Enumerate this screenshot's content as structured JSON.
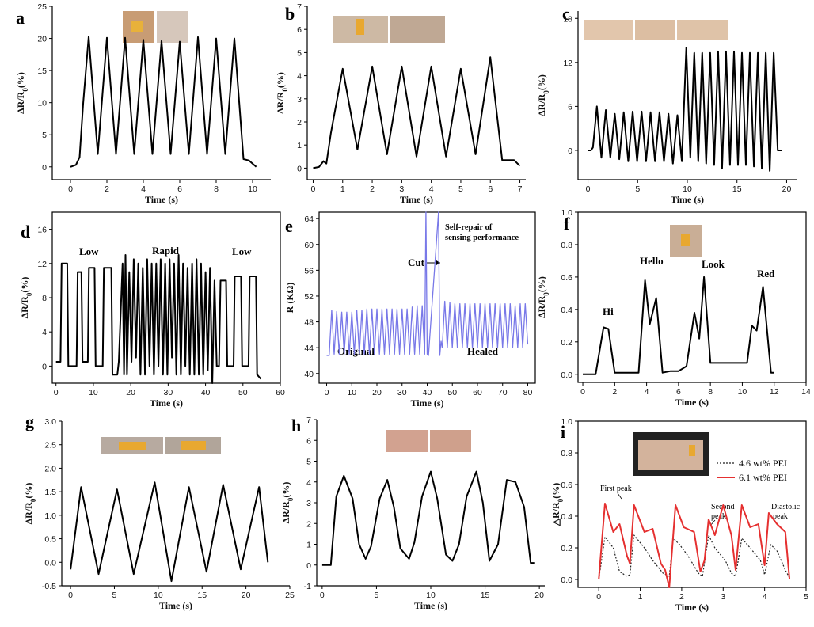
{
  "chart_data": [
    {
      "id": "a",
      "panel_label": "a",
      "type": "line",
      "xlabel": "Time (s)",
      "ylabel": "ΔR/R0(%)",
      "ylabel_main": "ΔR/R",
      "ylabel_sub": "0",
      "ylabel_tail": "(%)",
      "xlim": [
        -1,
        11
      ],
      "ylim": [
        -2,
        25
      ],
      "xticks": [
        0,
        2,
        4,
        6,
        8,
        10
      ],
      "yticks": [
        0,
        5,
        10,
        15,
        20,
        25
      ],
      "series": [
        {
          "name": "signal",
          "color": "#000000",
          "width": 2,
          "x": [
            0,
            0.3,
            0.5,
            0.7,
            1,
            1.5,
            2,
            2.5,
            3,
            3.5,
            4,
            4.5,
            5,
            5.5,
            6,
            6.5,
            7,
            7.5,
            8,
            8.5,
            9,
            9.5,
            9.8,
            10.2
          ],
          "y": [
            0,
            0.3,
            1.5,
            10,
            20.3,
            2,
            20.1,
            2,
            20.1,
            2,
            19.8,
            2,
            19.6,
            2,
            19.5,
            2,
            20.2,
            2,
            20,
            2,
            20,
            1.2,
            1,
            0
          ]
        }
      ]
    },
    {
      "id": "b",
      "panel_label": "b",
      "type": "line",
      "xlabel": "Time (s)",
      "ylabel": "ΔR/R0(%)",
      "ylabel_main": "ΔR/R",
      "ylabel_sub": "0",
      "ylabel_tail": "(%)",
      "xlim": [
        -0.2,
        7.2
      ],
      "ylim": [
        -0.5,
        7
      ],
      "xticks": [
        0,
        1,
        2,
        3,
        4,
        5,
        6,
        7
      ],
      "yticks": [
        0,
        1,
        2,
        3,
        4,
        5,
        6,
        7
      ],
      "series": [
        {
          "name": "signal",
          "color": "#000000",
          "width": 2,
          "x": [
            0,
            0.2,
            0.35,
            0.45,
            0.6,
            1,
            1.5,
            2,
            2.5,
            3,
            3.5,
            4,
            4.5,
            5,
            5.5,
            6,
            6.4,
            6.8,
            7
          ],
          "y": [
            0,
            0.05,
            0.3,
            0.2,
            1.5,
            4.3,
            0.8,
            4.4,
            0.6,
            4.4,
            0.5,
            4.4,
            0.5,
            4.3,
            0.6,
            4.8,
            0.35,
            0.35,
            0.1
          ]
        }
      ]
    },
    {
      "id": "c",
      "panel_label": "c",
      "type": "line",
      "xlabel": "Time (s)",
      "ylabel": "ΔR/R0(%)",
      "ylabel_main": "ΔR/R",
      "ylabel_sub": "0",
      "ylabel_tail": "(%)",
      "xlim": [
        -1,
        21
      ],
      "ylim": [
        -4,
        19
      ],
      "xticks": [
        0,
        5,
        10,
        15,
        20
      ],
      "yticks": [
        0,
        6,
        12,
        18
      ],
      "series": [
        {
          "name": "signal",
          "color": "#000000",
          "width": 2,
          "x": [
            0,
            0.3,
            0.5,
            0.9,
            1.35,
            1.8,
            2.25,
            2.7,
            3.15,
            3.6,
            4.05,
            4.5,
            4.95,
            5.4,
            5.85,
            6.3,
            6.75,
            7.2,
            7.65,
            8.1,
            8.55,
            9,
            9.45,
            9.9,
            10.3,
            10.7,
            11.1,
            11.5,
            11.9,
            12.3,
            12.7,
            13.1,
            13.5,
            13.9,
            14.3,
            14.7,
            15.1,
            15.5,
            15.9,
            16.3,
            16.7,
            17.1,
            17.5,
            17.9,
            18.3,
            18.7,
            19.1,
            19.5
          ],
          "y": [
            0,
            0,
            0.4,
            6,
            -1,
            5.5,
            -1,
            5,
            -1.2,
            5.2,
            -1.5,
            5.3,
            -1.5,
            5.3,
            -1.5,
            5.2,
            -1.5,
            5.2,
            -1.5,
            5,
            -1.8,
            4.8,
            -1.5,
            14,
            -1,
            13.3,
            -1.5,
            13.3,
            -1.8,
            13.3,
            -2,
            13.5,
            -2.5,
            13.5,
            -2,
            13.5,
            -2,
            13.3,
            -2,
            13.3,
            -2.2,
            13.3,
            -2.5,
            13.3,
            -2.8,
            13.3,
            0,
            0
          ]
        }
      ]
    },
    {
      "id": "d",
      "panel_label": "d",
      "type": "line",
      "xlabel": "Time (s)",
      "ylabel": "ΔR/R0(%)",
      "ylabel_main": "ΔR/R",
      "ylabel_sub": "0",
      "ylabel_tail": "(%)",
      "xlim": [
        -1,
        60
      ],
      "ylim": [
        -2,
        18
      ],
      "xticks": [
        0,
        10,
        20,
        30,
        40,
        50,
        60
      ],
      "yticks": [
        0,
        4,
        8,
        12,
        16
      ],
      "annotations": [
        "Low",
        "Rapid",
        "Low"
      ],
      "series": [
        {
          "name": "signal",
          "color": "#000000",
          "width": 2,
          "x": [
            0,
            1.2,
            1.5,
            3,
            3.3,
            5.5,
            5.8,
            6.8,
            7.1,
            8.5,
            8.8,
            10.3,
            10.6,
            12.5,
            12.8,
            14.8,
            15.1,
            16.4,
            16.8,
            17.8,
            18.2,
            18.6,
            19,
            19.6,
            20.2,
            20.8,
            21.4,
            22,
            22.6,
            23.2,
            23.8,
            24.4,
            25,
            25.6,
            26.2,
            26.8,
            27.4,
            28,
            28.6,
            29.2,
            29.8,
            30.4,
            31,
            31.6,
            32.2,
            32.8,
            33.4,
            34,
            34.6,
            35.2,
            35.8,
            36.4,
            37,
            37.6,
            38.2,
            38.8,
            39.4,
            40,
            40.6,
            41.2,
            41.8,
            42.4,
            43,
            43.6,
            44,
            45.5,
            45.8,
            47.5,
            47.8,
            49.5,
            49.8,
            51.5,
            51.8,
            53.5,
            53.8,
            54.8
          ],
          "y": [
            0.5,
            0.5,
            12,
            12,
            0,
            0,
            11,
            11,
            0.5,
            0.5,
            11.5,
            11.5,
            0,
            0,
            11.5,
            11.5,
            -1,
            -1,
            0.5,
            12,
            -1,
            13,
            -1,
            11,
            0.5,
            12.5,
            1,
            12,
            -1,
            11.5,
            -1,
            12.5,
            0,
            12,
            -1,
            12,
            0,
            12.5,
            -1,
            12,
            -1,
            12.5,
            1,
            12,
            -1,
            13,
            -1,
            12,
            0,
            11.5,
            -1,
            12,
            -1,
            12.5,
            -1,
            12,
            -1,
            11,
            -0.5,
            11.5,
            -2,
            10,
            0,
            0,
            10,
            10,
            0,
            0,
            10.5,
            10.5,
            0,
            0,
            10.5,
            10.5,
            -1,
            -1.5
          ]
        }
      ]
    },
    {
      "id": "e",
      "panel_label": "e",
      "type": "line",
      "xlabel": "Time (s)",
      "ylabel": "R (KΩ)",
      "xlim": [
        -3,
        83
      ],
      "ylim": [
        38.5,
        65
      ],
      "xticks": [
        0,
        10,
        20,
        30,
        40,
        50,
        60,
        70,
        80
      ],
      "yticks": [
        40,
        44,
        48,
        52,
        56,
        60,
        64
      ],
      "annotations": [
        "Self-repair of",
        "sensing performance",
        "Cut",
        "Original",
        "Healed"
      ],
      "series": [
        {
          "name": "resistance",
          "color": "#7878e8",
          "width": 1.3,
          "x": [
            0,
            1,
            2,
            3,
            4,
            5,
            6,
            7,
            8,
            9,
            10,
            11,
            12,
            13,
            14,
            15,
            16,
            17,
            18,
            19,
            20,
            21,
            22,
            23,
            24,
            25,
            26,
            27,
            28,
            29,
            30,
            31,
            32,
            33,
            34,
            35,
            36,
            37,
            38,
            39,
            39.5,
            40,
            40.5,
            44.5,
            45,
            45.5,
            46,
            47,
            48,
            49,
            50,
            51,
            52,
            53,
            54,
            55,
            56,
            57,
            58,
            59,
            60,
            61,
            62,
            63,
            64,
            65,
            66,
            67,
            68,
            69,
            70,
            71,
            72,
            73,
            74,
            75,
            76,
            77,
            78,
            79,
            80
          ],
          "y": [
            42.8,
            42.8,
            49.8,
            43,
            49.6,
            43,
            49.5,
            43,
            49.5,
            43,
            49.5,
            43,
            49.8,
            43,
            49.8,
            43,
            50,
            43,
            50,
            43,
            50,
            43,
            50,
            43,
            50,
            43,
            50,
            43,
            50,
            43,
            50,
            43,
            50,
            43,
            50.3,
            43,
            50.5,
            43,
            50.5,
            43,
            65,
            43,
            42.8,
            65,
            42.8,
            45,
            44,
            51.2,
            44,
            51,
            44,
            50.8,
            44,
            50.8,
            44,
            50.8,
            44,
            50.8,
            44,
            50.8,
            44,
            50.8,
            44,
            50.8,
            44,
            50.8,
            44,
            50.8,
            44,
            50.8,
            44,
            50.8,
            44,
            50.8,
            44,
            50.5,
            44,
            50.8,
            44,
            50.8,
            44.5
          ]
        }
      ]
    },
    {
      "id": "f",
      "panel_label": "f",
      "type": "line",
      "xlabel": "Time (s)",
      "ylabel": "ΔR/R0(%)",
      "ylabel_main": "ΔR/R",
      "ylabel_sub": "0",
      "ylabel_tail": "(%)",
      "xlim": [
        -0.3,
        14
      ],
      "ylim": [
        -0.05,
        1.0
      ],
      "xticks": [
        0,
        2,
        4,
        6,
        8,
        10,
        12,
        14
      ],
      "yticks": [
        0.0,
        0.2,
        0.4,
        0.6,
        0.8,
        1.0
      ],
      "annotations": [
        "Hi",
        "Hello",
        "Look",
        "Red"
      ],
      "series": [
        {
          "name": "signal",
          "color": "#000000",
          "width": 2,
          "x": [
            0,
            0.8,
            1.3,
            1.6,
            2.0,
            2.5,
            3.5,
            3.9,
            4.2,
            4.6,
            5.0,
            5.5,
            6.0,
            6.5,
            7.0,
            7.3,
            7.6,
            8.0,
            8.4,
            8.8,
            10.3,
            10.6,
            10.9,
            11.3,
            11.8,
            12.0
          ],
          "y": [
            0,
            0,
            0.29,
            0.28,
            0.01,
            0.01,
            0.01,
            0.58,
            0.31,
            0.47,
            0.01,
            0.02,
            0.02,
            0.05,
            0.38,
            0.22,
            0.6,
            0.07,
            0.07,
            0.07,
            0.07,
            0.3,
            0.27,
            0.54,
            0.01,
            0.01
          ]
        }
      ]
    },
    {
      "id": "g",
      "panel_label": "g",
      "type": "line",
      "xlabel": "Time (s)",
      "ylabel": "ΔR/R0(%)",
      "ylabel_main": "ΔR/R",
      "ylabel_sub": "0",
      "ylabel_tail": "(%)",
      "xlim": [
        -1,
        25
      ],
      "ylim": [
        -0.5,
        3.0
      ],
      "xticks": [
        0,
        5,
        10,
        15,
        20,
        25
      ],
      "yticks": [
        -0.5,
        0.0,
        0.5,
        1.0,
        1.5,
        2.0,
        2.5,
        3.0
      ],
      "series": [
        {
          "name": "signal",
          "color": "#000000",
          "width": 2,
          "x": [
            0,
            1.2,
            3.2,
            5.3,
            7.2,
            9.6,
            11.5,
            13.5,
            15.5,
            17.4,
            19.4,
            21.5,
            22.5
          ],
          "y": [
            -0.15,
            1.6,
            -0.25,
            1.55,
            -0.25,
            1.7,
            -0.4,
            1.6,
            -0.2,
            1.65,
            -0.15,
            1.6,
            0
          ]
        }
      ]
    },
    {
      "id": "h",
      "panel_label": "h",
      "type": "line",
      "xlabel": "Time (s)",
      "ylabel": "ΔR/R0(%)",
      "ylabel_main": "ΔR/R",
      "ylabel_sub": "0",
      "ylabel_tail": "(%)",
      "xlim": [
        -0.5,
        20.5
      ],
      "ylim": [
        -1,
        7
      ],
      "xticks": [
        0,
        5,
        10,
        15,
        20
      ],
      "yticks": [
        -1,
        0,
        1,
        2,
        3,
        4,
        5,
        6,
        7
      ],
      "series": [
        {
          "name": "signal",
          "color": "#000000",
          "width": 2,
          "x": [
            0,
            0.8,
            1.3,
            2.0,
            2.8,
            3.4,
            4.0,
            4.5,
            5.3,
            6.0,
            6.6,
            7.2,
            8.0,
            8.5,
            9.2,
            10.0,
            10.6,
            11.4,
            12.0,
            12.6,
            13.3,
            14.2,
            14.8,
            15.4,
            16.2,
            17.0,
            17.8,
            18.6,
            19.2,
            19.6
          ],
          "y": [
            0,
            0,
            3.3,
            4.3,
            3.2,
            1.0,
            0.3,
            0.9,
            3.2,
            4.1,
            2.8,
            0.8,
            0.3,
            1.1,
            3.3,
            4.5,
            3.2,
            0.5,
            0.2,
            1.0,
            3.3,
            4.5,
            3.0,
            0.2,
            1.0,
            4.1,
            4.0,
            2.8,
            0.1,
            0.1
          ]
        }
      ]
    },
    {
      "id": "i",
      "panel_label": "i",
      "type": "line",
      "xlabel": "Time (s)",
      "ylabel": "△R/R0(%)",
      "ylabel_main": "△R/R",
      "ylabel_sub": "0",
      "ylabel_tail": "(%)",
      "xlim": [
        -0.5,
        5
      ],
      "ylim": [
        -0.05,
        1.0
      ],
      "xticks": [
        0,
        1,
        2,
        3,
        4,
        5
      ],
      "yticks": [
        0.0,
        0.2,
        0.4,
        0.6,
        0.8,
        1.0
      ],
      "annotations": [
        "First peak",
        "Second",
        "peak",
        "Diastolic",
        "peak"
      ],
      "legend": [
        "4.6 wt% PEI",
        "6.1 wt% PEI"
      ],
      "series": [
        {
          "name": "4.6 wt% PEI",
          "color": "#222222",
          "width": 1.2,
          "dash": "2,2",
          "x": [
            0,
            0.15,
            0.35,
            0.5,
            0.68,
            0.75,
            0.85,
            1.1,
            1.3,
            1.55,
            1.7,
            1.8,
            1.95,
            2.15,
            2.4,
            2.5,
            2.65,
            2.8,
            3.05,
            3.2,
            3.3,
            3.45,
            3.65,
            3.9,
            4.0,
            4.15,
            4.3,
            4.5,
            4.6
          ],
          "y": [
            0,
            0.27,
            0.2,
            0.05,
            0.02,
            0.03,
            0.28,
            0.2,
            0.12,
            0.04,
            0.02,
            0.26,
            0.22,
            0.15,
            0.04,
            0.02,
            0.28,
            0.2,
            0.12,
            0.04,
            0.02,
            0.26,
            0.2,
            0.12,
            0.03,
            0.22,
            0.18,
            0.06,
            0.01
          ]
        },
        {
          "name": "6.1 wt% PEI",
          "color": "#e53030",
          "width": 2,
          "x": [
            0,
            0.15,
            0.35,
            0.5,
            0.68,
            0.75,
            0.85,
            1.1,
            1.3,
            1.5,
            1.6,
            1.7,
            1.85,
            2.05,
            2.3,
            2.45,
            2.55,
            2.65,
            2.8,
            3.0,
            3.2,
            3.3,
            3.45,
            3.65,
            3.85,
            4.0,
            4.1,
            4.3,
            4.5,
            4.6
          ],
          "y": [
            0,
            0.48,
            0.3,
            0.35,
            0.15,
            0.1,
            0.47,
            0.3,
            0.32,
            0.1,
            0.06,
            -0.05,
            0.47,
            0.33,
            0.3,
            0.05,
            0.12,
            0.38,
            0.28,
            0.47,
            0.28,
            0.06,
            0.47,
            0.33,
            0.35,
            0.09,
            0.42,
            0.35,
            0.3,
            0.0
          ]
        }
      ]
    }
  ]
}
